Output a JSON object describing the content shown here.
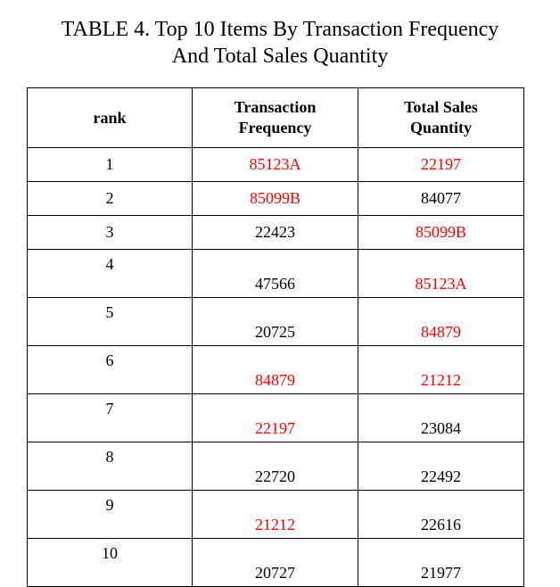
{
  "caption": {
    "line1": "TABLE 4. Top 10 Items By Transaction Frequency",
    "line2": "And Total Sales Quantity"
  },
  "columns": {
    "rank": "rank",
    "freq_line1": "Transaction",
    "freq_line2": "Frequency",
    "qty_line1": "Total Sales",
    "qty_line2": "Quantity"
  },
  "colors": {
    "highlight": "#ff0000",
    "text": "#000000"
  },
  "rows": [
    {
      "rank": "1",
      "freq": "85123A",
      "freq_color": "red",
      "qty": "22197",
      "qty_color": "red"
    },
    {
      "rank": "2",
      "freq": "85099B",
      "freq_color": "red",
      "qty": "84077",
      "qty_color": "black"
    },
    {
      "rank": "3",
      "freq": "22423",
      "freq_color": "black",
      "qty": "85099B",
      "qty_color": "red"
    },
    {
      "rank": "4",
      "freq": "47566",
      "freq_color": "black",
      "qty": "85123A",
      "qty_color": "red"
    },
    {
      "rank": "5",
      "freq": "20725",
      "freq_color": "black",
      "qty": "84879",
      "qty_color": "red"
    },
    {
      "rank": "6",
      "freq": "84879",
      "freq_color": "red",
      "qty": "21212",
      "qty_color": "red"
    },
    {
      "rank": "7",
      "freq": "22197",
      "freq_color": "red",
      "qty": "23084",
      "qty_color": "black"
    },
    {
      "rank": "8",
      "freq": "22720",
      "freq_color": "black",
      "qty": "22492",
      "qty_color": "black"
    },
    {
      "rank": "9",
      "freq": "21212",
      "freq_color": "red",
      "qty": "22616",
      "qty_color": "black"
    },
    {
      "rank": "10",
      "freq": "20727",
      "freq_color": "black",
      "qty": "21977",
      "qty_color": "black"
    }
  ]
}
